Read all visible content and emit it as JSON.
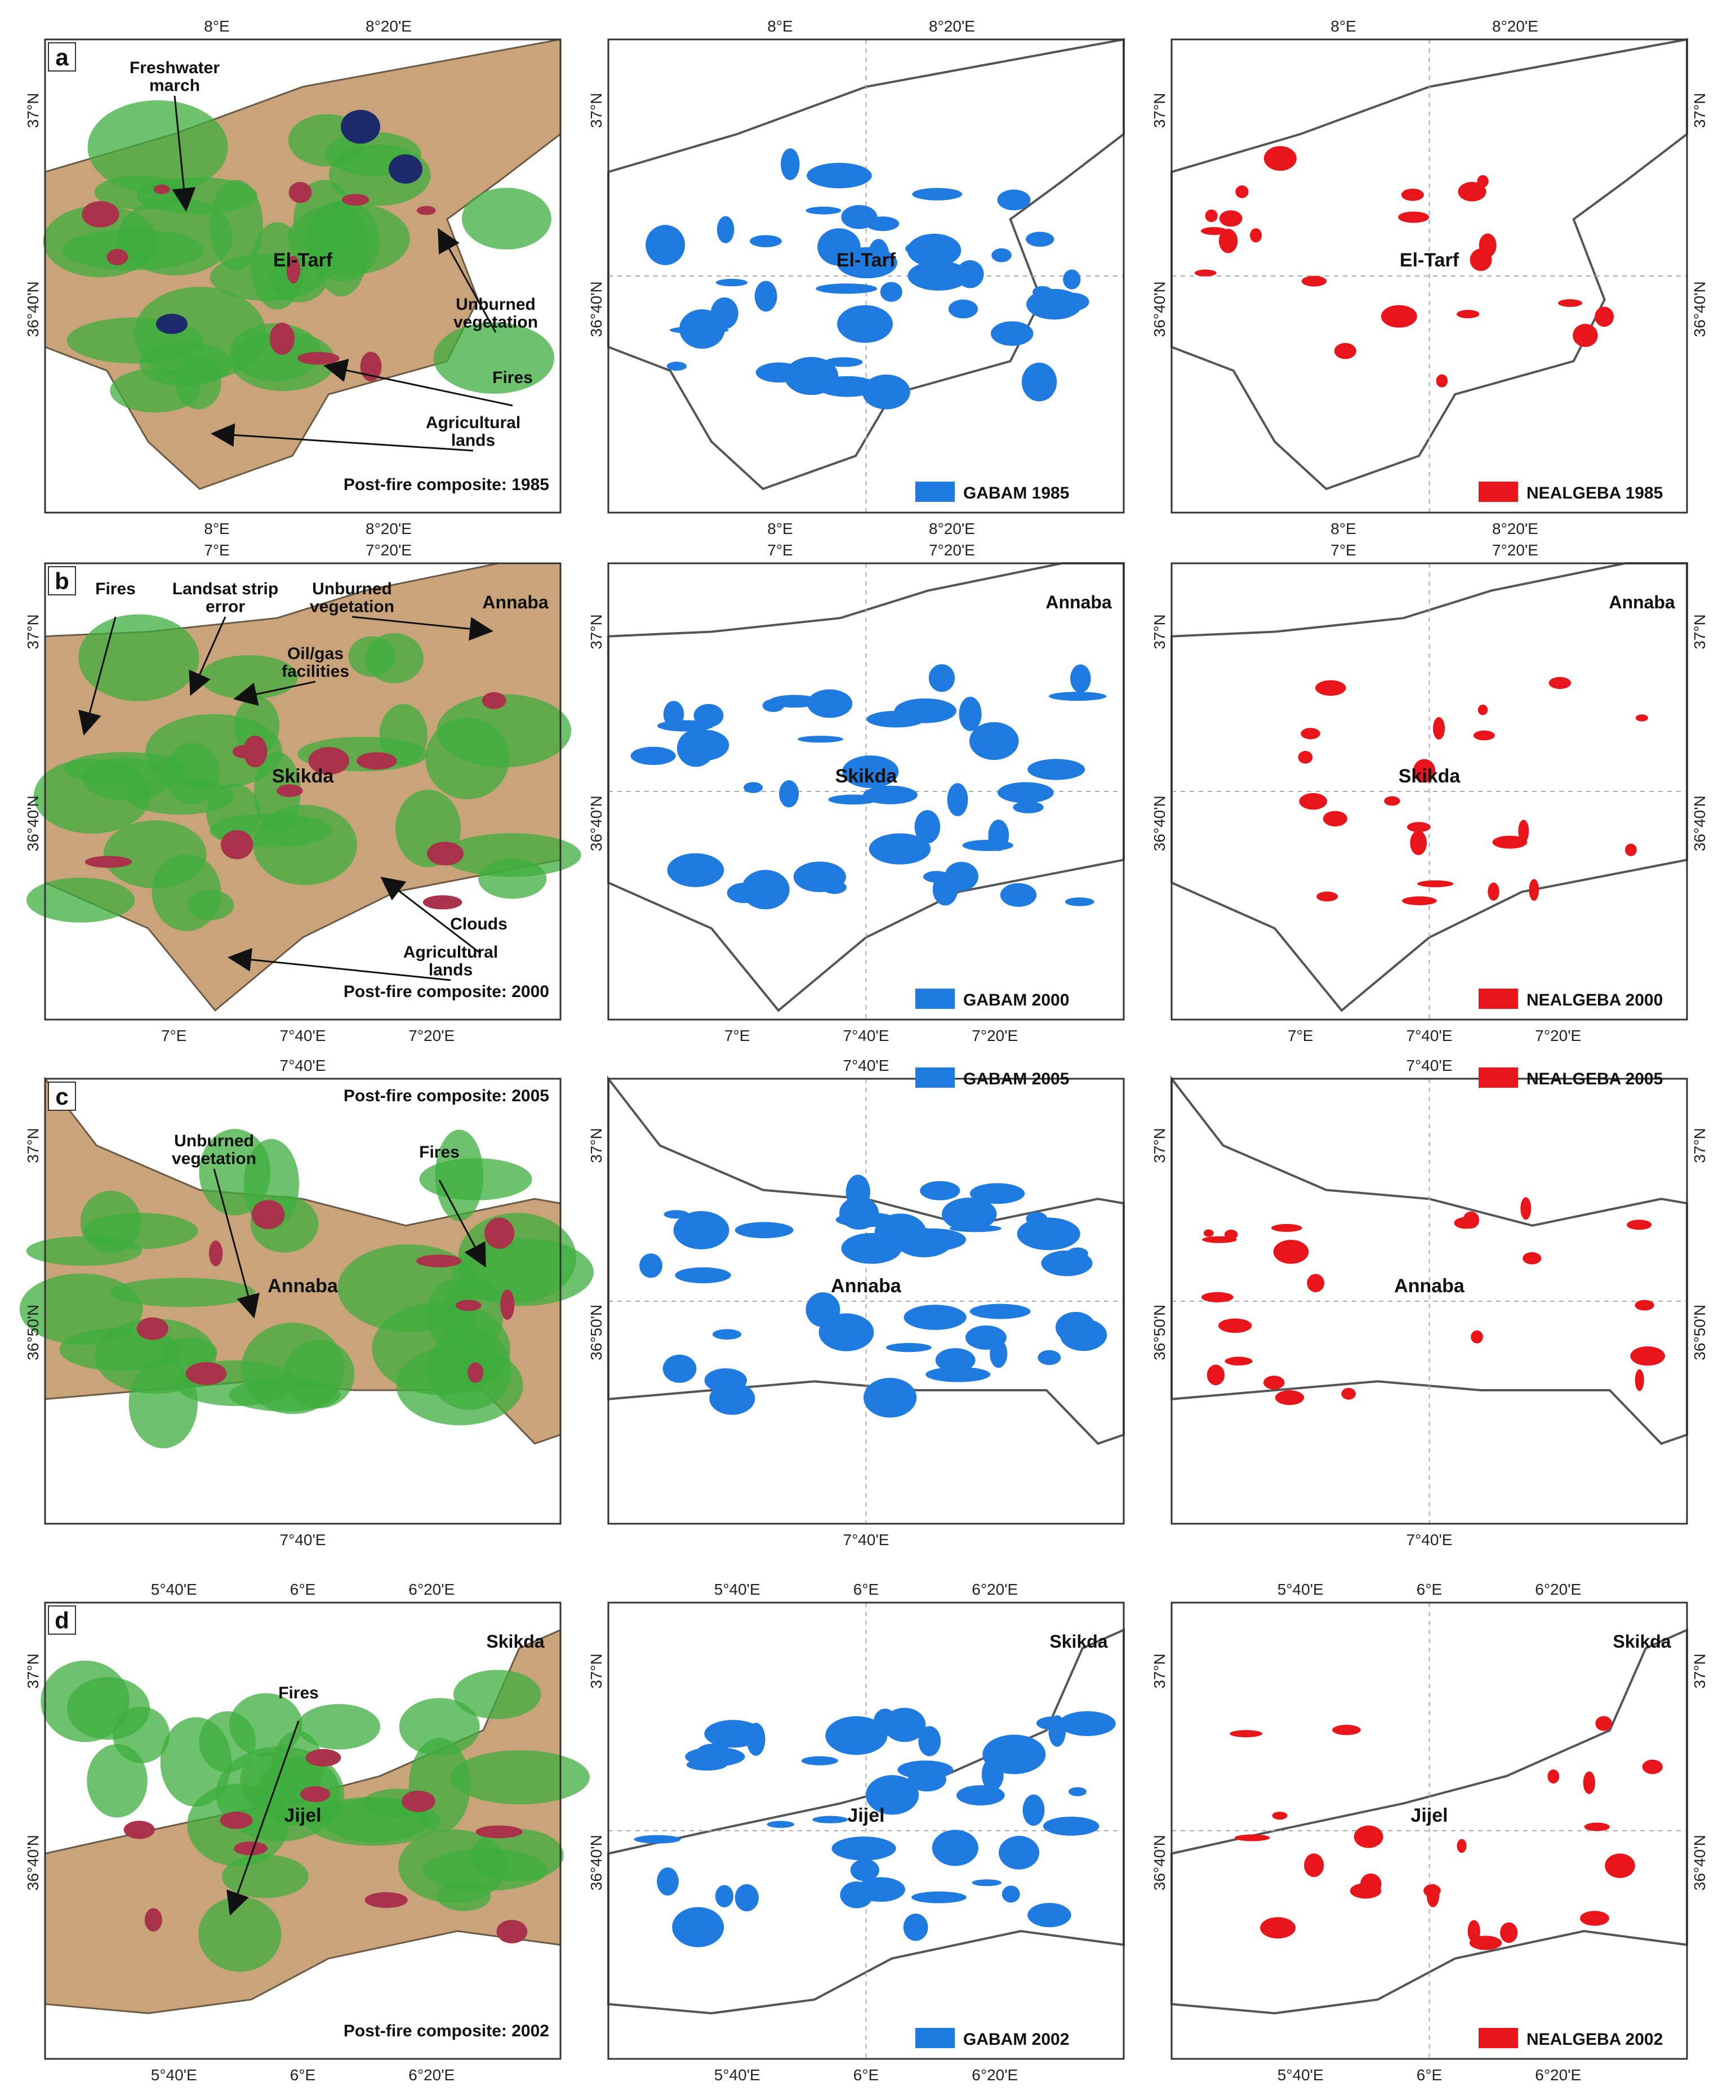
{
  "rows": [
    {
      "letter": "a",
      "place": "El-Tarf",
      "composite_caption": "Post-fire composite: 1985",
      "gabam_legend": "GABAM 1985",
      "nealgeba_legend": "NEALGEBA 1985",
      "x_ticks_top": [
        "8°E",
        "8°20'E"
      ],
      "x_ticks_bottom": [
        "8°E",
        "8°20'E"
      ],
      "y_ticks": [
        "37°N",
        "36°40'N"
      ],
      "annotations": [
        "Freshwater march",
        "Unburned vegetation",
        "Fires",
        "Agricultural lands"
      ]
    },
    {
      "letter": "b",
      "place": "Skikda",
      "secondary_place": "Annaba",
      "composite_caption": "Post-fire composite: 2000",
      "gabam_legend": "GABAM 2000",
      "nealgeba_legend": "NEALGEBA 2000",
      "x_ticks_top": [
        "7°E",
        "7°20'E"
      ],
      "x_ticks_bottom": [
        "7°E",
        "7°40'E",
        "7°20'E"
      ],
      "y_ticks": [
        "37°N",
        "36°40'N"
      ],
      "annotations": [
        "Fires",
        "Landsat strip error",
        "Unburned vegetation",
        "Oil/gas facilities",
        "Clouds",
        "Agricultural lands"
      ]
    },
    {
      "letter": "c",
      "place": "Annaba",
      "composite_caption": "Post-fire composite: 2005",
      "gabam_legend": "GABAM 2005",
      "nealgeba_legend": "NEALGEBA 2005",
      "x_ticks_top": [
        "7°40'E"
      ],
      "x_ticks_bottom": [
        "7°40'E"
      ],
      "y_ticks": [
        "37°N",
        "36°50'N"
      ],
      "annotations": [
        "Unburned vegetation",
        "Fires"
      ]
    },
    {
      "letter": "d",
      "place": "Jijel",
      "secondary_place": "Skikda",
      "composite_caption": "Post-fire composite: 2002",
      "gabam_legend": "GABAM 2002",
      "nealgeba_legend": "NEALGEBA 2002",
      "x_ticks_top": [
        "5°40'E",
        "6°E",
        "6°20'E"
      ],
      "x_ticks_bottom": [
        "5°40'E",
        "6°E",
        "6°20'E"
      ],
      "y_ticks": [
        "37°N",
        "36°40'N"
      ],
      "annotations": [
        "Fires"
      ]
    }
  ],
  "colors": {
    "gabam": "#1f7be0",
    "nealgeba": "#e8161b",
    "vegetation": "#3dae3d",
    "agriculture": "#c9a47a",
    "burn": "#a8334a",
    "water": "#1c2a6b"
  }
}
